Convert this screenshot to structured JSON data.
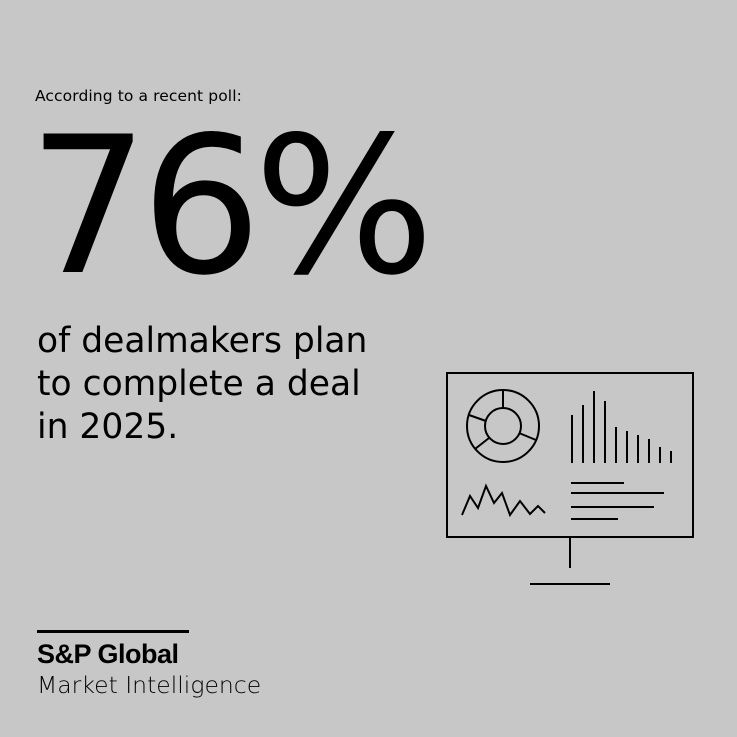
{
  "intro": "According to a recent poll:",
  "stat": {
    "value": "76",
    "unit": "%"
  },
  "body_lines": [
    "of dealmakers plan",
    "to complete a deal",
    "in 2025."
  ],
  "icon": "monitor-dashboard-icon",
  "logo": {
    "name": "S&P Global",
    "tagline": "Market Intelligence"
  },
  "colors": {
    "background": "#c6c7c6",
    "foreground": "#000000"
  }
}
